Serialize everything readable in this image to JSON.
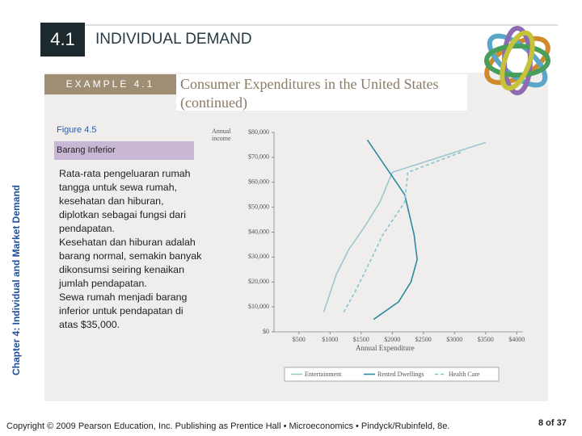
{
  "header": {
    "number": "4.1",
    "title": "INDIVIDUAL DEMAND"
  },
  "example": {
    "label": "EXAMPLE 4.1",
    "title": "Consumer Expenditures in the United States",
    "subtitle": "(continued)"
  },
  "side_label": "Chapter 4: Individual and Market Demand",
  "figure_label": "Figure 4.5",
  "box_title": "Barang Inferior",
  "body": [
    "Rata-rata pengeluaran rumah tangga untuk sewa rumah, kesehatan dan hiburan, diplotkan sebagai fungsi dari pendapatan.",
    "Kesehatan dan hiburan adalah barang normal, semakin banyak dikonsumsi seiring kenaikan jumlah pendapatan.",
    "Sewa rumah menjadi barang inferior untuk pendapatan di atas $35,000."
  ],
  "chart_data": {
    "type": "line",
    "ylabel": "Annual income",
    "xlabel": "Annual Expenditure",
    "xlim": [
      100,
      4100
    ],
    "ylim": [
      0,
      80000
    ],
    "xticks": [
      {
        "value": 500,
        "label": "$500"
      },
      {
        "value": 1000,
        "label": "$1000"
      },
      {
        "value": 1500,
        "label": "$1500"
      },
      {
        "value": 2000,
        "label": "$2000"
      },
      {
        "value": 2500,
        "label": "$2500"
      },
      {
        "value": 3000,
        "label": "$3000"
      },
      {
        "value": 3500,
        "label": "$3500"
      },
      {
        "value": 4000,
        "label": "$4000"
      }
    ],
    "yticks": [
      {
        "value": 0,
        "label": "$0"
      },
      {
        "value": 10000,
        "label": "$10,000"
      },
      {
        "value": 20000,
        "label": "$20,000"
      },
      {
        "value": 30000,
        "label": "$30,000"
      },
      {
        "value": 40000,
        "label": "$40,000"
      },
      {
        "value": 50000,
        "label": "$50,000"
      },
      {
        "value": 60000,
        "label": "$60,000"
      },
      {
        "value": 70000,
        "label": "$70,000"
      },
      {
        "value": 80000,
        "label": "$80,000"
      }
    ],
    "series": [
      {
        "name": "Entertainment",
        "color": "#9cc7cf",
        "dash": "none",
        "x": [
          3500,
          2000,
          1800,
          1550,
          1300,
          1100,
          900
        ],
        "values": [
          76000,
          64000,
          52000,
          42000,
          33000,
          23000,
          8000
        ]
      },
      {
        "name": "Rented Dwellings",
        "color": "#2a8aa0",
        "dash": "none",
        "x": [
          1600,
          2200,
          2350,
          2400,
          2300,
          2100,
          1700
        ],
        "values": [
          77000,
          55000,
          39000,
          29000,
          20000,
          12000,
          5000
        ]
      },
      {
        "name": "Health Care",
        "color": "#86c3d2",
        "dash": "4 3",
        "x": [
          3100,
          2250,
          2200,
          1850,
          1600,
          1400,
          1200
        ],
        "values": [
          72000,
          64000,
          52000,
          39000,
          26000,
          16000,
          7000
        ]
      }
    ]
  },
  "footer": {
    "copyright": "Copyright © 2009 Pearson Education, Inc. Publishing as Prentice Hall • Microeconomics • Pindyck/Rubinfeld, 8e.",
    "page": "8 of 37"
  }
}
